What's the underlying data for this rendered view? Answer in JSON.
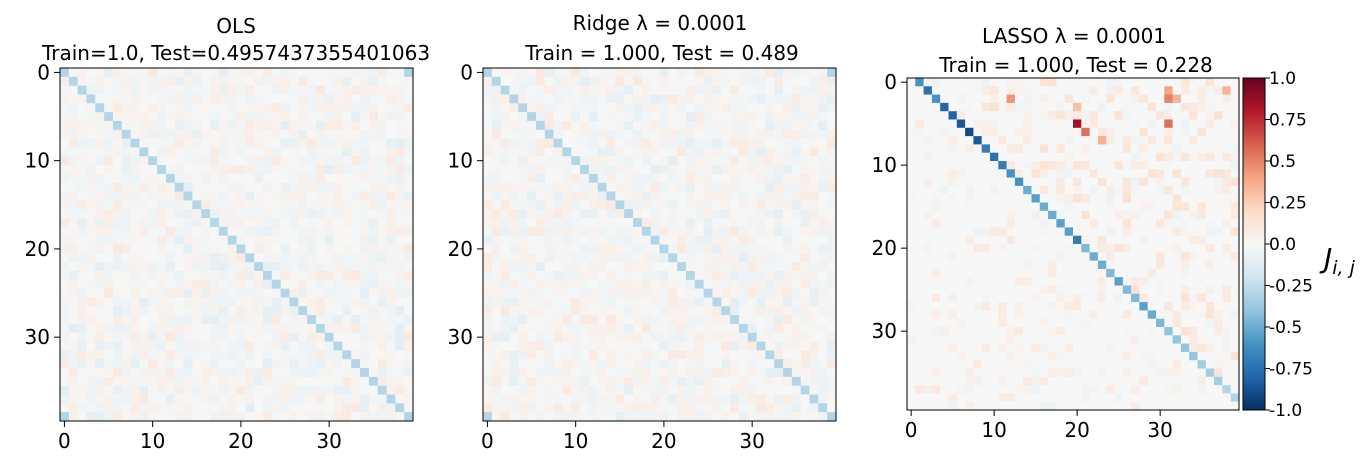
{
  "chart_data": [
    {
      "type": "heatmap",
      "title_line1": "OLS",
      "title_line2": "Train=1.0, Test=0.4957437355401063",
      "size": 40,
      "x_ticks": [
        0,
        10,
        20,
        30
      ],
      "y_ticks": [
        0,
        10,
        20,
        30
      ],
      "diagonal_value": -0.3,
      "corner_values": [
        {
          "row": 0,
          "col": 39,
          "value": -0.3
        },
        {
          "row": 39,
          "col": 0,
          "value": -0.3
        }
      ],
      "noise_amplitude": 0.1,
      "vmin": -1.0,
      "vmax": 1.0
    },
    {
      "type": "heatmap",
      "title_line1": "Ridge λ = 0.0001",
      "title_line2": "Train = 1.000, Test = 0.489",
      "size": 40,
      "x_ticks": [
        0,
        10,
        20,
        30
      ],
      "y_ticks": [
        0,
        10,
        20,
        30
      ],
      "diagonal_value": -0.3,
      "corner_values": [
        {
          "row": 0,
          "col": 39,
          "value": -0.3
        },
        {
          "row": 39,
          "col": 0,
          "value": -0.3
        }
      ],
      "noise_amplitude": 0.1,
      "vmin": -1.0,
      "vmax": 1.0
    },
    {
      "type": "heatmap",
      "title_line1": "LASSO λ = 0.0001",
      "title_line2": "Train = 1.000, Test = 0.228",
      "size": 40,
      "x_ticks": [
        0,
        10,
        20,
        30
      ],
      "y_ticks": [
        0,
        10,
        20,
        30
      ],
      "superdiagonal_values": [
        -0.6,
        -0.75,
        -0.6,
        -0.8,
        -0.8,
        -0.85,
        -0.9,
        -0.85,
        -0.7,
        -0.75,
        -0.7,
        -0.6,
        -0.6,
        -0.5,
        -0.55,
        -0.5,
        -0.5,
        -0.55,
        -0.55,
        -0.7,
        -0.45,
        -0.5,
        -0.5,
        -0.45,
        -0.55,
        -0.45,
        -0.45,
        -0.55,
        -0.5,
        -0.45,
        -0.4,
        -0.4,
        -0.4,
        -0.4,
        -0.35,
        -0.35,
        -0.35,
        -0.3,
        -0.3
      ],
      "hotspots": [
        {
          "row": 5,
          "col": 20,
          "value": 0.85
        },
        {
          "row": 6,
          "col": 21,
          "value": 0.55
        },
        {
          "row": 2,
          "col": 31,
          "value": 0.5
        },
        {
          "row": 5,
          "col": 31,
          "value": 0.55
        },
        {
          "row": 1,
          "col": 31,
          "value": 0.4
        },
        {
          "row": 2,
          "col": 32,
          "value": 0.35
        },
        {
          "row": 2,
          "col": 12,
          "value": 0.45
        },
        {
          "row": 7,
          "col": 23,
          "value": 0.35
        },
        {
          "row": 1,
          "col": 38,
          "value": 0.35
        },
        {
          "row": 3,
          "col": 20,
          "value": 0.3
        }
      ],
      "noise_amplitude_upper": 0.2,
      "noise_amplitude_lower": 0.15,
      "vmin": -1.0,
      "vmax": 1.0
    }
  ],
  "colorbar": {
    "ticks": [
      "1.0",
      "0.75",
      "0.5",
      "0.25",
      "0.0",
      "-0.25",
      "-0.5",
      "-0.75",
      "-1.0"
    ],
    "label": "J_{i,j}",
    "label_main": "J",
    "label_sub": "i, j",
    "colors": [
      "#67001f",
      "#b2182b",
      "#d6604d",
      "#f4a582",
      "#fddbc7",
      "#f7f7f7",
      "#d1e5f0",
      "#92c5de",
      "#4393c3",
      "#2166ac",
      "#053061"
    ]
  }
}
